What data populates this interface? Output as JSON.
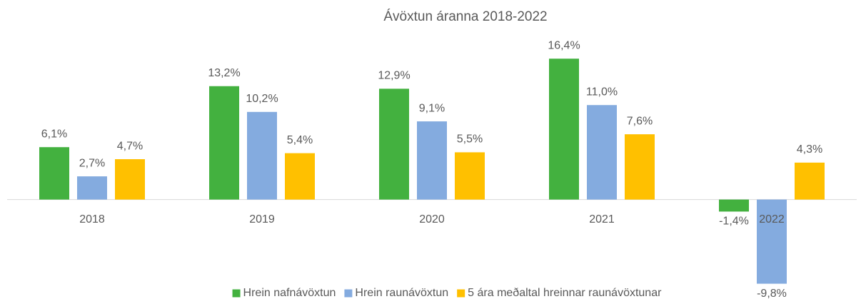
{
  "chart_data": {
    "type": "bar",
    "title": "Ávöxtun áranna 2018-2022",
    "categories": [
      "2018",
      "2019",
      "2020",
      "2021",
      "2022"
    ],
    "series": [
      {
        "name": "Hrein nafnávöxtun",
        "color": "#43b13f",
        "values": [
          6.1,
          13.2,
          12.9,
          16.4,
          -1.4
        ],
        "value_labels": [
          "6,1%",
          "13,2%",
          "12,9%",
          "16,4%",
          "-1,4%"
        ]
      },
      {
        "name": "Hrein raunávöxtun",
        "color": "#84abdf",
        "values": [
          2.7,
          10.2,
          9.1,
          11.0,
          -9.8
        ],
        "value_labels": [
          "2,7%",
          "10,2%",
          "9,1%",
          "11,0%",
          "-9,8%"
        ]
      },
      {
        "name": "5 ára meðaltal hreinnar raunávöxtunar",
        "color": "#ffc000",
        "values": [
          4.7,
          5.4,
          5.5,
          7.6,
          4.3
        ],
        "value_labels": [
          "4,7%",
          "5,4%",
          "5,5%",
          "7,6%",
          "4,3%"
        ]
      }
    ],
    "ylim": [
      -10,
      17
    ],
    "legend": "bottom"
  }
}
